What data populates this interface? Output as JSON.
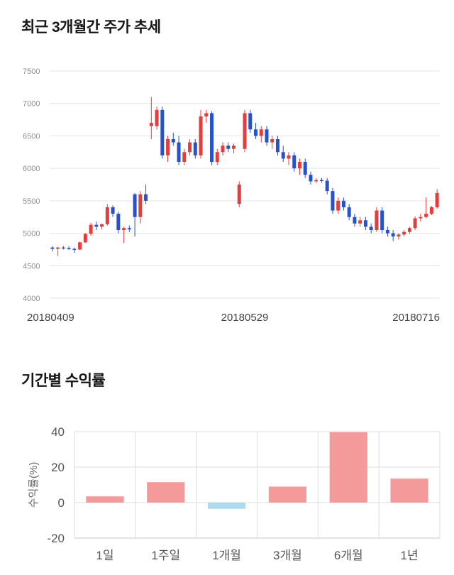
{
  "price_section": {
    "title": "최근 3개월간 주가 추세"
  },
  "returns_section": {
    "title": "기간별 수익률"
  },
  "chart_data": [
    {
      "type": "candlestick",
      "title": "최근 3개월간 주가 추세",
      "ylim": [
        4000,
        7500
      ],
      "y_ticks": [
        7500,
        7000,
        6500,
        6000,
        5500,
        5000,
        4500,
        4000
      ],
      "x_tick_labels": [
        "20180409",
        "20180529",
        "20180716"
      ],
      "grid": true,
      "colors": {
        "up": "#e43d3d",
        "down": "#2a52c8",
        "grid": "#e4e4e4",
        "axis_text": "#8f8f8f",
        "date_text": "#444444"
      },
      "candles_ohlc": [
        [
          4780,
          4800,
          4720,
          4760
        ],
        [
          4760,
          4790,
          4650,
          4780
        ],
        [
          4780,
          4800,
          4750,
          4770
        ],
        [
          4770,
          4800,
          4740,
          4760
        ],
        [
          4760,
          4780,
          4700,
          4750
        ],
        [
          4750,
          4870,
          4740,
          4860
        ],
        [
          4860,
          5000,
          4850,
          4990
        ],
        [
          4990,
          5160,
          4960,
          5130
        ],
        [
          5130,
          5180,
          5050,
          5100
        ],
        [
          5100,
          5150,
          5060,
          5140
        ],
        [
          5140,
          5450,
          5120,
          5400
        ],
        [
          5400,
          5430,
          5250,
          5300
        ],
        [
          5300,
          5330,
          5000,
          5050
        ],
        [
          5050,
          5100,
          4850,
          5080
        ],
        [
          5080,
          5120,
          5020,
          5060
        ],
        [
          5600,
          5620,
          4950,
          5250
        ],
        [
          5250,
          5650,
          5150,
          5600
        ],
        [
          5600,
          5750,
          5450,
          5500
        ],
        [
          6650,
          7100,
          6450,
          6700
        ],
        [
          6650,
          6950,
          6600,
          6900
        ],
        [
          6900,
          6950,
          6150,
          6200
        ],
        [
          6200,
          6500,
          6100,
          6450
        ],
        [
          6450,
          6550,
          6350,
          6400
        ],
        [
          6400,
          6500,
          6050,
          6100
        ],
        [
          6100,
          6300,
          6050,
          6250
        ],
        [
          6250,
          6450,
          6200,
          6400
        ],
        [
          6400,
          6450,
          6150,
          6200
        ],
        [
          6200,
          6900,
          6150,
          6800
        ],
        [
          6800,
          6900,
          6700,
          6850
        ],
        [
          6850,
          6880,
          6050,
          6100
        ],
        [
          6100,
          6300,
          6050,
          6250
        ],
        [
          6250,
          6400,
          6200,
          6350
        ],
        [
          6350,
          6400,
          6250,
          6300
        ],
        [
          6300,
          6380,
          6230,
          6350
        ],
        [
          5450,
          5800,
          5400,
          5750
        ],
        [
          6300,
          6900,
          6250,
          6850
        ],
        [
          6850,
          6900,
          6550,
          6600
        ],
        [
          6600,
          6700,
          6450,
          6500
        ],
        [
          6500,
          6650,
          6400,
          6600
        ],
        [
          6600,
          6650,
          6350,
          6400
        ],
        [
          6400,
          6500,
          6300,
          6450
        ],
        [
          6450,
          6500,
          6200,
          6250
        ],
        [
          6250,
          6350,
          6100,
          6150
        ],
        [
          6150,
          6250,
          6050,
          6200
        ],
        [
          6200,
          6250,
          5950,
          6000
        ],
        [
          6000,
          6150,
          5900,
          6100
        ],
        [
          6100,
          6150,
          5850,
          5900
        ],
        [
          5900,
          5950,
          5750,
          5800
        ],
        [
          5800,
          5850,
          5770,
          5820
        ],
        [
          5820,
          5850,
          5780,
          5810
        ],
        [
          5810,
          5850,
          5600,
          5650
        ],
        [
          5650,
          5700,
          5300,
          5350
        ],
        [
          5350,
          5550,
          5300,
          5500
        ],
        [
          5500,
          5550,
          5350,
          5400
        ],
        [
          5400,
          5450,
          5200,
          5250
        ],
        [
          5250,
          5300,
          5100,
          5150
        ],
        [
          5150,
          5250,
          5100,
          5200
        ],
        [
          5200,
          5250,
          5050,
          5100
        ],
        [
          5100,
          5150,
          5000,
          5050
        ],
        [
          5050,
          5400,
          5020,
          5350
        ],
        [
          5350,
          5400,
          5000,
          5050
        ],
        [
          5050,
          5100,
          4950,
          5000
        ],
        [
          5000,
          5050,
          4880,
          4950
        ],
        [
          4950,
          5000,
          4900,
          4980
        ],
        [
          4980,
          5050,
          4950,
          5020
        ],
        [
          5020,
          5100,
          4990,
          5080
        ],
        [
          5080,
          5260,
          5050,
          5230
        ],
        [
          5230,
          5300,
          5180,
          5250
        ],
        [
          5250,
          5550,
          5230,
          5300
        ],
        [
          5300,
          5420,
          5280,
          5400
        ],
        [
          5400,
          5680,
          5380,
          5620
        ]
      ]
    },
    {
      "type": "bar",
      "title": "기간별 수익률",
      "categories": [
        "1일",
        "1주일",
        "1개월",
        "3개월",
        "6개월",
        "1년"
      ],
      "values": [
        3.5,
        11.5,
        -3.5,
        9,
        39.7,
        13.5
      ],
      "ylabel": "수익률(%)",
      "ylim": [
        -20,
        40
      ],
      "y_ticks": [
        40,
        20,
        0,
        -20
      ],
      "grid": true,
      "legend": "none",
      "colors": {
        "positive": "#f59a9a",
        "negative": "#aadcee",
        "grid": "#dcdcdc",
        "axis": "#c9c9c9",
        "text": "#555555",
        "ylabel_text": "#666666"
      }
    }
  ]
}
